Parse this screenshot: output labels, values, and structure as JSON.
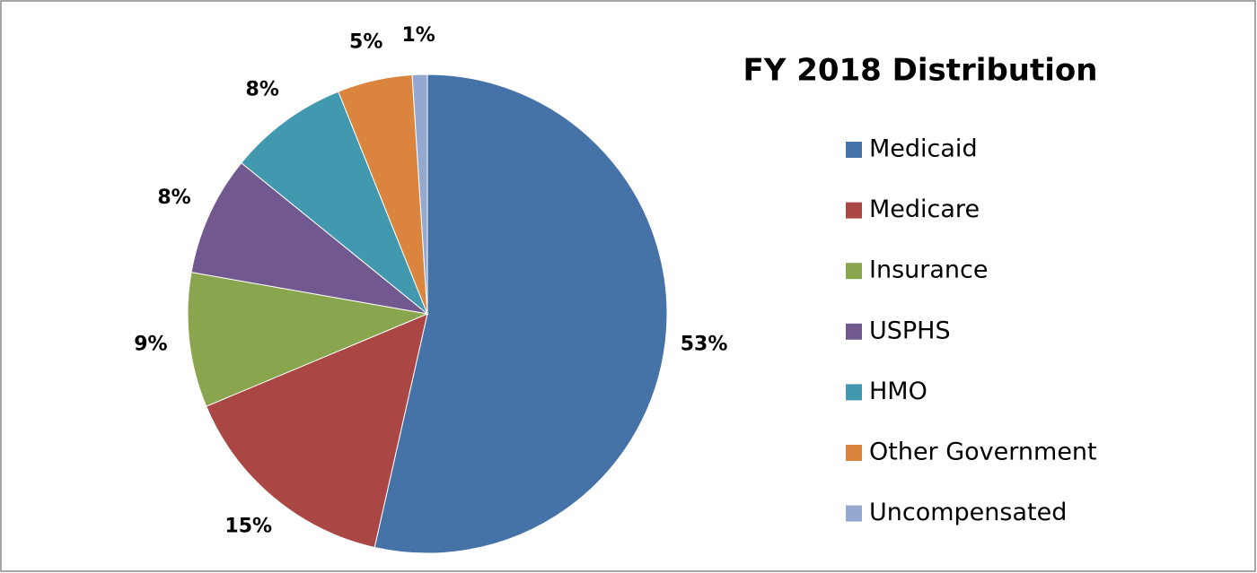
{
  "chart_data": {
    "type": "pie",
    "title": "FY 2018 Distribution",
    "categories": [
      "Medicaid",
      "Medicare",
      "Insurance",
      "USPHS",
      "HMO",
      "Other Government",
      "Uncompensated"
    ],
    "values": [
      53,
      15,
      9,
      8,
      8,
      5,
      1
    ],
    "colors": [
      "#4572a7",
      "#aa4643",
      "#89a54e",
      "#71588f",
      "#4198af",
      "#db843d",
      "#93a9cf"
    ],
    "value_labels": [
      "53%",
      "15%",
      "9%",
      "8%",
      "8%",
      "5%",
      "1%"
    ],
    "legend": "right"
  }
}
